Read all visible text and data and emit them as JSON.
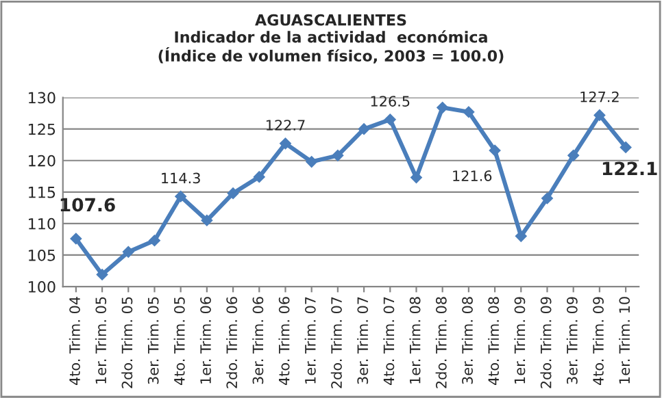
{
  "chart_data": {
    "type": "line",
    "title": "AGUASCALIENTES\nIndicador de la actividad  económica\n(Índice de volumen físico, 2003 = 100.0)",
    "categories": [
      "4to. Trim. 04",
      "1er. Trim. 05",
      "2do. Trim. 05",
      "3er. Trim. 05",
      "4to. Trim. 05",
      "1er. Trim. 06",
      "2do. Trim. 06",
      "3er. Trim. 06",
      "4to. Trim. 06",
      "1er. Trim. 07",
      "2do. Trim. 07",
      "3er. Trim. 07",
      "4to. Trim. 07",
      "1er. Trim. 08",
      "2do. Trim. 08",
      "3er. Trim. 08",
      "4to. Trim. 08",
      "1er. Trim. 09",
      "2do. Trim. 09",
      "3er. Trim. 09",
      "4to. Trim. 09",
      "1er. Trim. 10"
    ],
    "series": [
      {
        "color": "#4a7ebb",
        "values": [
          107.6,
          101.9,
          105.5,
          107.3,
          114.3,
          110.5,
          114.8,
          117.4,
          122.7,
          119.8,
          120.8,
          125.0,
          126.5,
          117.3,
          128.4,
          127.7,
          121.6,
          108.0,
          114.0,
          120.8,
          127.2,
          122.1
        ],
        "value_labels": [
          "107.6",
          null,
          null,
          null,
          "114.3",
          null,
          null,
          null,
          "122.7",
          null,
          null,
          null,
          "126.5",
          null,
          null,
          null,
          "121.6",
          null,
          null,
          null,
          "127.2",
          "122.1"
        ]
      }
    ],
    "ylim": [
      100,
      130
    ],
    "yticks": [
      100,
      105,
      110,
      115,
      120,
      125,
      130
    ],
    "grid": "y",
    "marker": "diamond",
    "line_style": "solid",
    "legend": false
  }
}
